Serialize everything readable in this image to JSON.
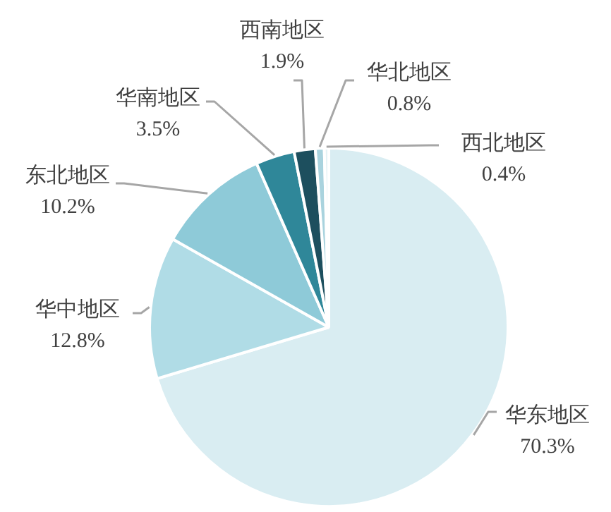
{
  "chart_data": {
    "type": "pie",
    "categories": [
      "华东地区",
      "华中地区",
      "东北地区",
      "华南地区",
      "西南地区",
      "华北地区",
      "西北地区"
    ],
    "values": [
      70.3,
      12.8,
      10.2,
      3.5,
      1.9,
      0.8,
      0.4
    ],
    "value_labels": [
      "70.3%",
      "12.8%",
      "10.2%",
      "3.5%",
      "1.9%",
      "0.8%",
      "0.4%"
    ],
    "colors": [
      "#d9edf2",
      "#b0dce6",
      "#8ecad8",
      "#2f8799",
      "#1d4f5e",
      "#a9d3de",
      "#e6f3f6"
    ],
    "legend": false
  }
}
